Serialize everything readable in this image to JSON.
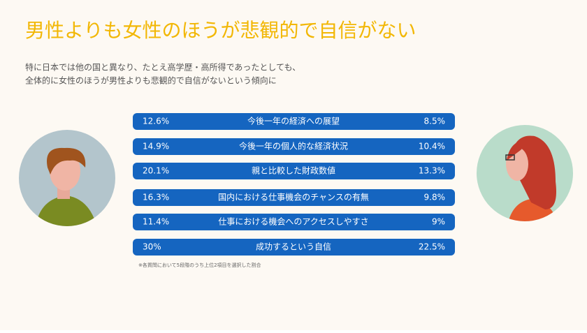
{
  "title": "男性よりも女性のほうが悲観的で自信がない",
  "description": [
    "特に日本では他の国と異なり、たとえ高学歴・高所得であったとしても、",
    "全体的に女性のほうが男性よりも悲観的で自信がないという傾向に"
  ],
  "rows": [
    {
      "male": "12.6%",
      "label": "今後一年の経済への展望",
      "female": "8.5%"
    },
    {
      "male": "14.9%",
      "label": "今後一年の個人的な経済状況",
      "female": "10.4%"
    },
    {
      "male": "20.1%",
      "label": "親と比較した財政数値",
      "female": "13.3%"
    },
    {
      "male": "16.3%",
      "label": "国内における仕事機会のチャンスの有無",
      "female": "9.8%"
    },
    {
      "male": "11.4%",
      "label": "仕事における機会へのアクセスしやすさ",
      "female": "9%"
    },
    {
      "male": "30%",
      "label": "成功するという自信",
      "female": "22.5%"
    }
  ],
  "footnote": "※各質問において5段階のうち上位2項目を選択した割合"
}
